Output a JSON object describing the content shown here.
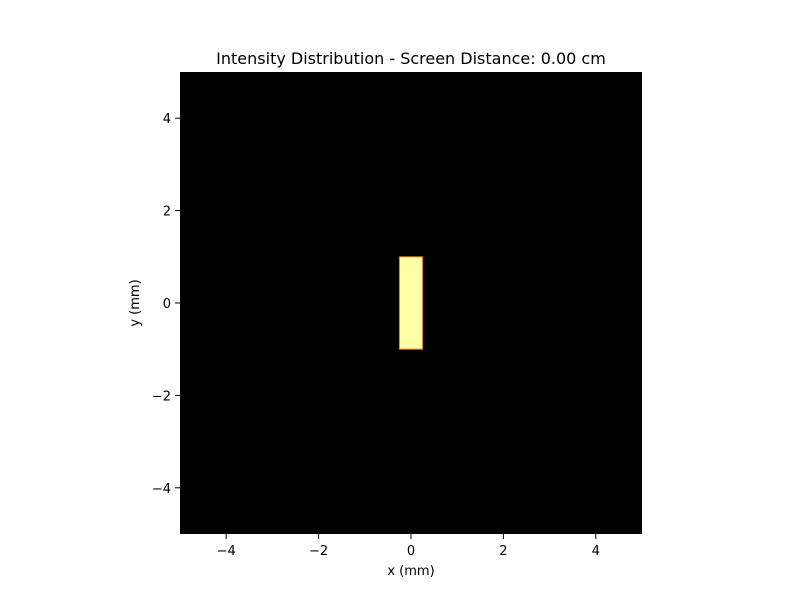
{
  "chart_data": {
    "type": "heatmap",
    "title": "Intensity Distribution - Screen Distance: 0.00 cm",
    "xlabel": "x (mm)",
    "ylabel": "y (mm)",
    "xlim": [
      -5,
      5
    ],
    "ylim": [
      -5,
      5
    ],
    "xticks": [
      -4,
      -2,
      0,
      2,
      4
    ],
    "yticks": [
      -4,
      -2,
      0,
      2,
      4
    ],
    "xtick_labels": [
      "−4",
      "−2",
      "0",
      "2",
      "4"
    ],
    "ytick_labels": [
      "−4",
      "−2",
      "0",
      "2",
      "4"
    ],
    "grid": false,
    "colormap": "inferno",
    "background_color": "#000000",
    "aperture": {
      "shape": "rectangle",
      "x_range": [
        -0.25,
        0.25
      ],
      "y_range": [
        -1,
        1
      ],
      "color": "#fcffa4",
      "edge_color": "#f07a1a"
    }
  }
}
